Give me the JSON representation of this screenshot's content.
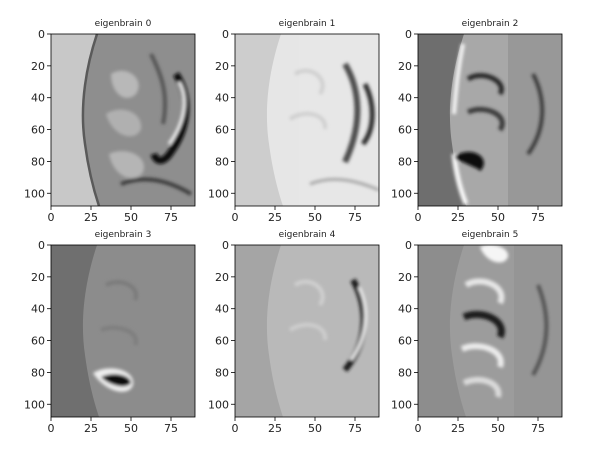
{
  "figure": {
    "panels": [
      {
        "title": "eigenbrain 0",
        "bg": "#c8c8c8",
        "tissue": "#8e8e8e",
        "edge": "#5a5a5a",
        "x_ticks": [
          "0",
          "25",
          "50",
          "75"
        ],
        "y_ticks": [
          "0",
          "20",
          "40",
          "60",
          "80",
          "100"
        ]
      },
      {
        "title": "eigenbrain 1",
        "bg": "#cdcdcd",
        "tissue": "#e6e6e6",
        "edge": "#8a8a8a",
        "x_ticks": [
          "0",
          "25",
          "50",
          "75"
        ],
        "y_ticks": [
          "0",
          "20",
          "40",
          "60",
          "80",
          "100"
        ]
      },
      {
        "title": "eigenbrain 2",
        "bg": "#6e6e6e",
        "tissue": "#a8a8a8",
        "edge": "#1e1e1e",
        "x_ticks": [
          "0",
          "25",
          "50",
          "75"
        ],
        "y_ticks": [
          "0",
          "20",
          "40",
          "60",
          "80",
          "100"
        ]
      },
      {
        "title": "eigenbrain 3",
        "bg": "#6f6f6f",
        "tissue": "#8c8c8c",
        "edge": "#3a3a3a",
        "x_ticks": [
          "0",
          "25",
          "50",
          "75"
        ],
        "y_ticks": [
          "0",
          "20",
          "40",
          "60",
          "80",
          "100"
        ]
      },
      {
        "title": "eigenbrain 4",
        "bg": "#a5a5a5",
        "tissue": "#b9b9b9",
        "edge": "#707070",
        "x_ticks": [
          "0",
          "25",
          "50",
          "75"
        ],
        "y_ticks": [
          "0",
          "20",
          "40",
          "60",
          "80",
          "100"
        ]
      },
      {
        "title": "eigenbrain 5",
        "bg": "#8d8d8d",
        "tissue": "#9c9c9c",
        "edge": "#4e4e4e",
        "x_ticks": [
          "0",
          "25",
          "50",
          "75"
        ],
        "y_ticks": [
          "0",
          "20",
          "40",
          "60",
          "80",
          "100"
        ]
      }
    ]
  }
}
